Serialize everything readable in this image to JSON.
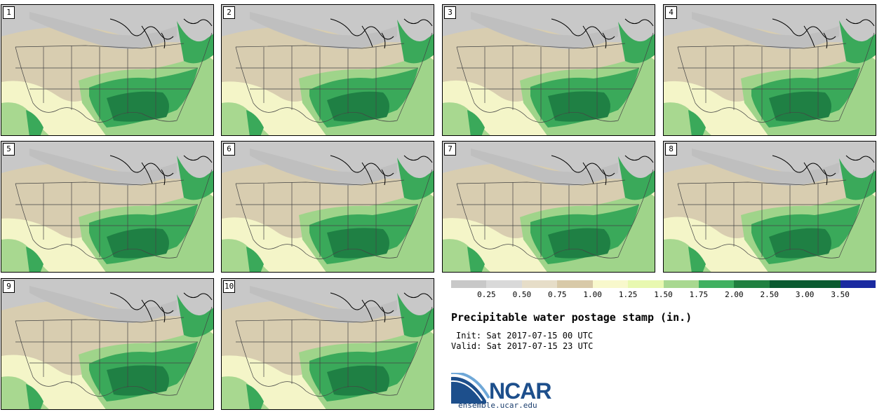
{
  "panels": [
    {
      "label": "1"
    },
    {
      "label": "2"
    },
    {
      "label": "3"
    },
    {
      "label": "4"
    },
    {
      "label": "5"
    },
    {
      "label": "6"
    },
    {
      "label": "7"
    },
    {
      "label": "8"
    },
    {
      "label": "9"
    },
    {
      "label": "10"
    }
  ],
  "colorbar": {
    "colors": [
      "#c8c8c8",
      "#d9d9d9",
      "#e6ddc8",
      "#d8c9a8",
      "#f8f8cc",
      "#e8f8b0",
      "#a8d890",
      "#40b060",
      "#208040",
      "#0a5a30",
      "#0a5a30",
      "#1a2aa0"
    ],
    "labels": [
      "0.25",
      "0.50",
      "0.75",
      "1.00",
      "1.25",
      "1.50",
      "1.75",
      "2.00",
      "2.50",
      "3.00",
      "3.50"
    ]
  },
  "title": "Precipitable water postage stamp (in.)",
  "init": "Init: Sat 2017-07-15 00 UTC",
  "valid": "Valid: Sat 2017-07-15 23 UTC",
  "logo": {
    "text": "NCAR",
    "colors": {
      "brand": "#1d4f8c"
    }
  },
  "site": "ensemble.ucar.edu"
}
